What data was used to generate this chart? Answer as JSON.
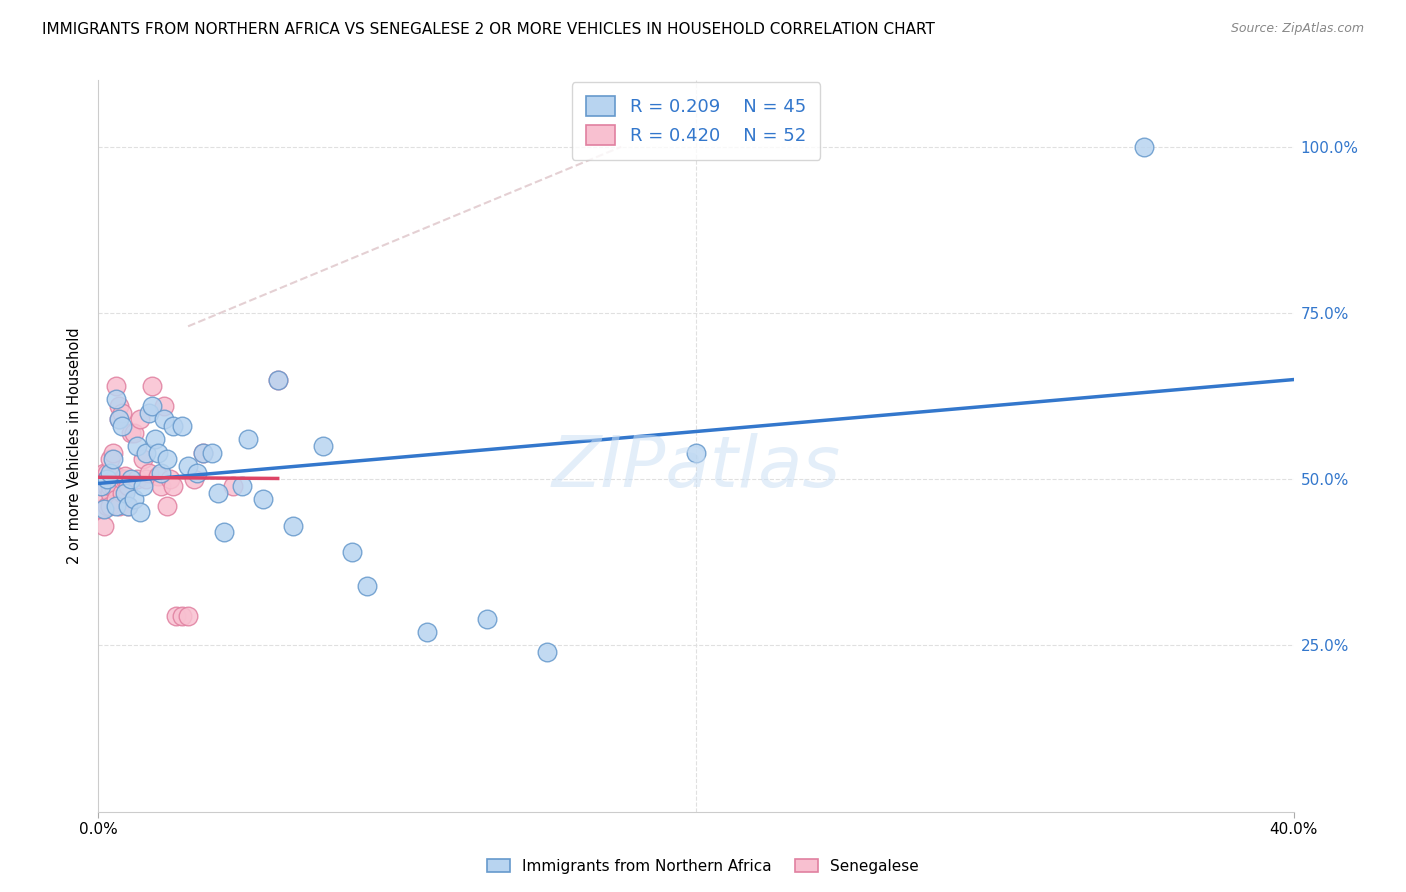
{
  "title": "IMMIGRANTS FROM NORTHERN AFRICA VS SENEGALESE 2 OR MORE VEHICLES IN HOUSEHOLD CORRELATION CHART",
  "source": "Source: ZipAtlas.com",
  "ylabel": "2 or more Vehicles in Household",
  "xlim": [
    0.0,
    0.4
  ],
  "ylim": [
    0.0,
    1.1
  ],
  "xtick_labels": [
    "0.0%",
    "40.0%"
  ],
  "xtick_values": [
    0.0,
    0.4
  ],
  "ytick_labels": [
    "25.0%",
    "50.0%",
    "75.0%",
    "100.0%"
  ],
  "ytick_values": [
    0.25,
    0.5,
    0.75,
    1.0
  ],
  "R_blue": 0.209,
  "N_blue": 45,
  "R_pink": 0.42,
  "N_pink": 52,
  "blue_scatter_color": "#b8d4f0",
  "blue_edge_color": "#6699cc",
  "pink_scatter_color": "#f8c0d0",
  "pink_edge_color": "#e080a0",
  "trend_blue_color": "#3377cc",
  "trend_pink_color": "#dd4466",
  "ref_line_color": "#e0c8cc",
  "watermark_text": "ZIPatlas",
  "legend_label_blue": "Immigrants from Northern Africa",
  "legend_label_pink": "Senegalese",
  "grid_color": "#e0e0e0",
  "blue_x": [
    0.001,
    0.002,
    0.003,
    0.004,
    0.005,
    0.006,
    0.006,
    0.007,
    0.008,
    0.009,
    0.01,
    0.011,
    0.012,
    0.013,
    0.014,
    0.015,
    0.016,
    0.017,
    0.018,
    0.019,
    0.02,
    0.021,
    0.022,
    0.023,
    0.025,
    0.028,
    0.03,
    0.033,
    0.035,
    0.038,
    0.04,
    0.042,
    0.048,
    0.05,
    0.055,
    0.06,
    0.065,
    0.075,
    0.085,
    0.09,
    0.11,
    0.15,
    0.2,
    0.13,
    0.35
  ],
  "blue_y": [
    0.49,
    0.455,
    0.5,
    0.51,
    0.53,
    0.46,
    0.62,
    0.59,
    0.58,
    0.48,
    0.46,
    0.5,
    0.47,
    0.55,
    0.45,
    0.49,
    0.54,
    0.6,
    0.61,
    0.56,
    0.54,
    0.51,
    0.59,
    0.53,
    0.58,
    0.58,
    0.52,
    0.51,
    0.54,
    0.54,
    0.48,
    0.42,
    0.49,
    0.56,
    0.47,
    0.65,
    0.43,
    0.55,
    0.39,
    0.34,
    0.27,
    0.24,
    0.54,
    0.29,
    1.0
  ],
  "pink_x": [
    0.001,
    0.001,
    0.001,
    0.002,
    0.002,
    0.002,
    0.002,
    0.003,
    0.003,
    0.003,
    0.003,
    0.004,
    0.004,
    0.004,
    0.004,
    0.005,
    0.005,
    0.005,
    0.006,
    0.006,
    0.006,
    0.007,
    0.007,
    0.007,
    0.008,
    0.008,
    0.008,
    0.009,
    0.009,
    0.01,
    0.01,
    0.011,
    0.012,
    0.013,
    0.014,
    0.015,
    0.016,
    0.017,
    0.018,
    0.02,
    0.021,
    0.022,
    0.023,
    0.024,
    0.025,
    0.026,
    0.028,
    0.03,
    0.032,
    0.035,
    0.045,
    0.06
  ],
  "pink_y": [
    0.5,
    0.49,
    0.455,
    0.49,
    0.47,
    0.43,
    0.51,
    0.51,
    0.49,
    0.46,
    0.5,
    0.48,
    0.49,
    0.46,
    0.53,
    0.5,
    0.54,
    0.49,
    0.505,
    0.47,
    0.64,
    0.46,
    0.59,
    0.61,
    0.48,
    0.5,
    0.6,
    0.5,
    0.505,
    0.46,
    0.49,
    0.57,
    0.57,
    0.5,
    0.59,
    0.53,
    0.5,
    0.51,
    0.64,
    0.505,
    0.49,
    0.61,
    0.46,
    0.5,
    0.49,
    0.295,
    0.295,
    0.295,
    0.5,
    0.54,
    0.49,
    0.65
  ]
}
